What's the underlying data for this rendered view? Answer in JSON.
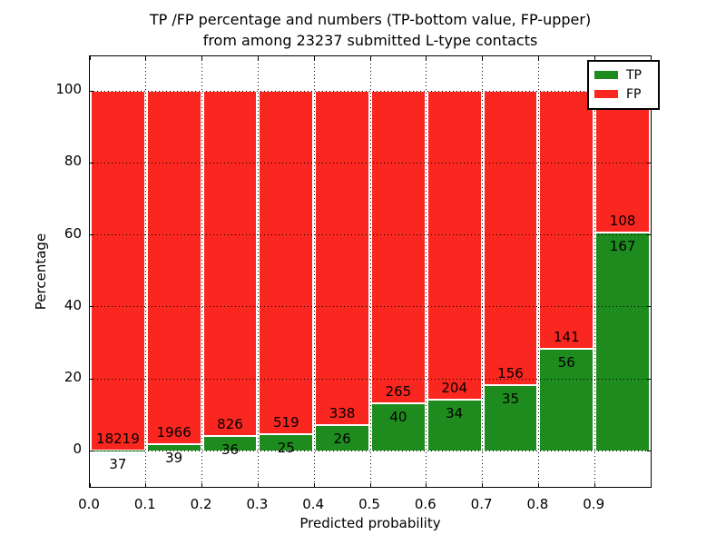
{
  "figure": {
    "title_line1": "TP /FP percentage and numbers (TP-bottom value, FP-upper)",
    "title_line2": "from among 23237 submitted L-type contacts",
    "xlabel": "Predicted probability",
    "ylabel": "Percentage"
  },
  "legend": {
    "position": "upper right",
    "entries": [
      {
        "label": "TP",
        "color": "#1e8b1e"
      },
      {
        "label": "FP",
        "color": "#fa2620"
      }
    ]
  },
  "chart_data": {
    "type": "bar",
    "stacked": true,
    "normalized_to": 100,
    "title": "TP /FP percentage and numbers (TP-bottom value, FP-upper) from among 23237 submitted L-type contacts",
    "total_submitted_contacts": 23237,
    "xlabel": "Predicted probability",
    "ylabel": "Percentage",
    "bin_edges": [
      0.0,
      0.1,
      0.2,
      0.3,
      0.4,
      0.5,
      0.6,
      0.7,
      0.8,
      0.9,
      1.0
    ],
    "categories": [
      "0.0-0.1",
      "0.1-0.2",
      "0.2-0.3",
      "0.3-0.4",
      "0.4-0.5",
      "0.5-0.6",
      "0.6-0.7",
      "0.7-0.8",
      "0.8-0.9",
      "0.9-1.0"
    ],
    "series": [
      {
        "name": "TP",
        "color": "#1e8b1e",
        "values": [
          37,
          39,
          36,
          25,
          26,
          40,
          34,
          35,
          56,
          167
        ]
      },
      {
        "name": "FP",
        "color": "#fa2620",
        "values": [
          18219,
          1966,
          826,
          519,
          338,
          265,
          204,
          156,
          141,
          108
        ]
      }
    ],
    "tp_percent_of_bin": [
      0.2,
      1.9,
      4.2,
      4.6,
      7.1,
      13.1,
      14.3,
      18.3,
      28.4,
      60.7
    ],
    "xticks": [
      "0.0",
      "0.1",
      "0.2",
      "0.3",
      "0.4",
      "0.5",
      "0.6",
      "0.7",
      "0.8",
      "0.9"
    ],
    "yticks": [
      0,
      20,
      40,
      60,
      80,
      100
    ],
    "xlim": [
      0,
      1.0
    ],
    "ylim": [
      -10,
      109.6
    ],
    "grid": "dotted, both axes",
    "bar_edge_color": "#ffffff",
    "legend_position": "upper right"
  }
}
